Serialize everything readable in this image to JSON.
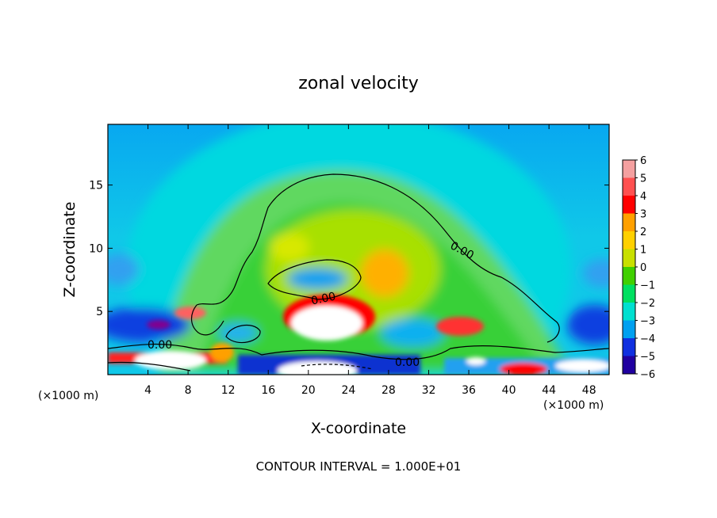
{
  "chart_data": {
    "type": "heatmap",
    "title": "zonal velocity",
    "xlabel": "X-coordinate",
    "ylabel": "Z-coordinate",
    "x_unit": "(×1000 m)",
    "z_unit": "(×1000 m)",
    "xlim": [
      0,
      50
    ],
    "ylim": [
      0,
      19.8
    ],
    "x_ticks": [
      4,
      8,
      12,
      16,
      20,
      24,
      28,
      32,
      36,
      40,
      44,
      48
    ],
    "y_ticks": [
      5,
      10,
      15
    ],
    "colorbar": {
      "levels": [
        6,
        5,
        4,
        3,
        2,
        1,
        0,
        -1,
        -2,
        -3,
        -4,
        -5,
        -6
      ],
      "colors": [
        "#f4a0a0",
        "#ff5050",
        "#ff0000",
        "#ffa000",
        "#ffd000",
        "#c8e000",
        "#40d000",
        "#00e060",
        "#00e0d0",
        "#00a0f0",
        "#1030e0",
        "#2000a0",
        "#800090"
      ]
    },
    "contour_labels": [
      {
        "text": "0.00",
        "x": 36,
        "z": 9.6
      },
      {
        "text": "0.00",
        "x": 21.5,
        "z": 6.0
      },
      {
        "text": "0.00",
        "x": 5.5,
        "z": 2.3
      },
      {
        "text": "0.00",
        "x": 30.2,
        "z": 1.0
      }
    ],
    "annotation": "CONTOUR INTERVAL = 1.000E+01"
  }
}
